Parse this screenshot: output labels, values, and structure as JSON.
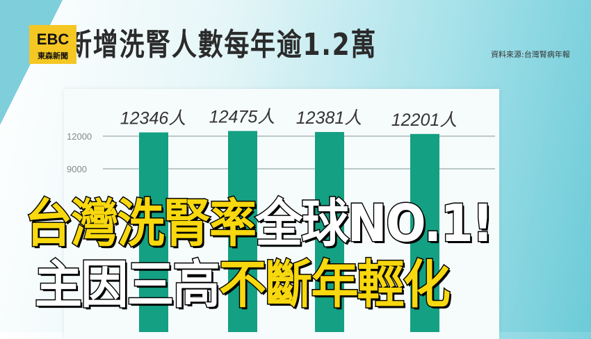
{
  "logo": {
    "text": "EBC",
    "subtext": "東森新聞"
  },
  "headline": "新增洗腎人數每年逾1.2萬",
  "source": "資料來源:台灣腎病年報",
  "chart_data": {
    "type": "bar",
    "categories": [
      "",
      "",
      "",
      ""
    ],
    "values": [
      12346,
      12475,
      12381,
      12201
    ],
    "data_labels": [
      "12346人",
      "12475人",
      "12381人",
      "12201人"
    ],
    "yticks": [
      "12000",
      "9000"
    ],
    "ytick_values": [
      12000,
      9000
    ],
    "grid": true,
    "bar_color": "#14a083"
  },
  "caption": {
    "line1_yellow": "台灣洗腎率",
    "line1_white": "全球NO.1!",
    "line2_white": "主因三高",
    "line2_yellow": "不斷年輕化"
  }
}
